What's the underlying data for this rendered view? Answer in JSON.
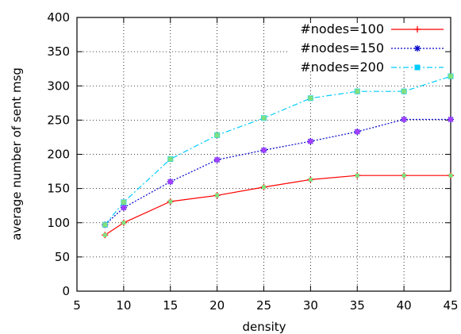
{
  "chart_data": {
    "type": "line",
    "title": "",
    "xlabel": "density",
    "ylabel": "average number of sent msg",
    "xlim": [
      5,
      45
    ],
    "ylim": [
      0,
      400
    ],
    "xticks": [
      5,
      10,
      15,
      20,
      25,
      30,
      35,
      40,
      45
    ],
    "yticks": [
      0,
      50,
      100,
      150,
      200,
      250,
      300,
      350,
      400
    ],
    "grid": true,
    "legend_position": "top-right",
    "x": [
      8,
      10,
      15,
      20,
      25,
      30,
      35,
      40,
      45
    ],
    "series": [
      {
        "name": "#nodes=100",
        "color": "#ff0000",
        "marker": "plus",
        "line_style": "solid",
        "values": [
          82,
          100,
          131,
          140,
          152,
          163,
          169,
          169,
          169
        ]
      },
      {
        "name": "#nodes=150",
        "color": "#0000cc",
        "marker": "star",
        "line_style": "dotted",
        "values": [
          97,
          122,
          160,
          192,
          206,
          219,
          233,
          251,
          251
        ]
      },
      {
        "name": "#nodes=200",
        "color": "#00ccff",
        "marker": "square",
        "line_style": "dashdot",
        "values": [
          97,
          130,
          193,
          228,
          253,
          282,
          292,
          292,
          314
        ]
      }
    ]
  }
}
